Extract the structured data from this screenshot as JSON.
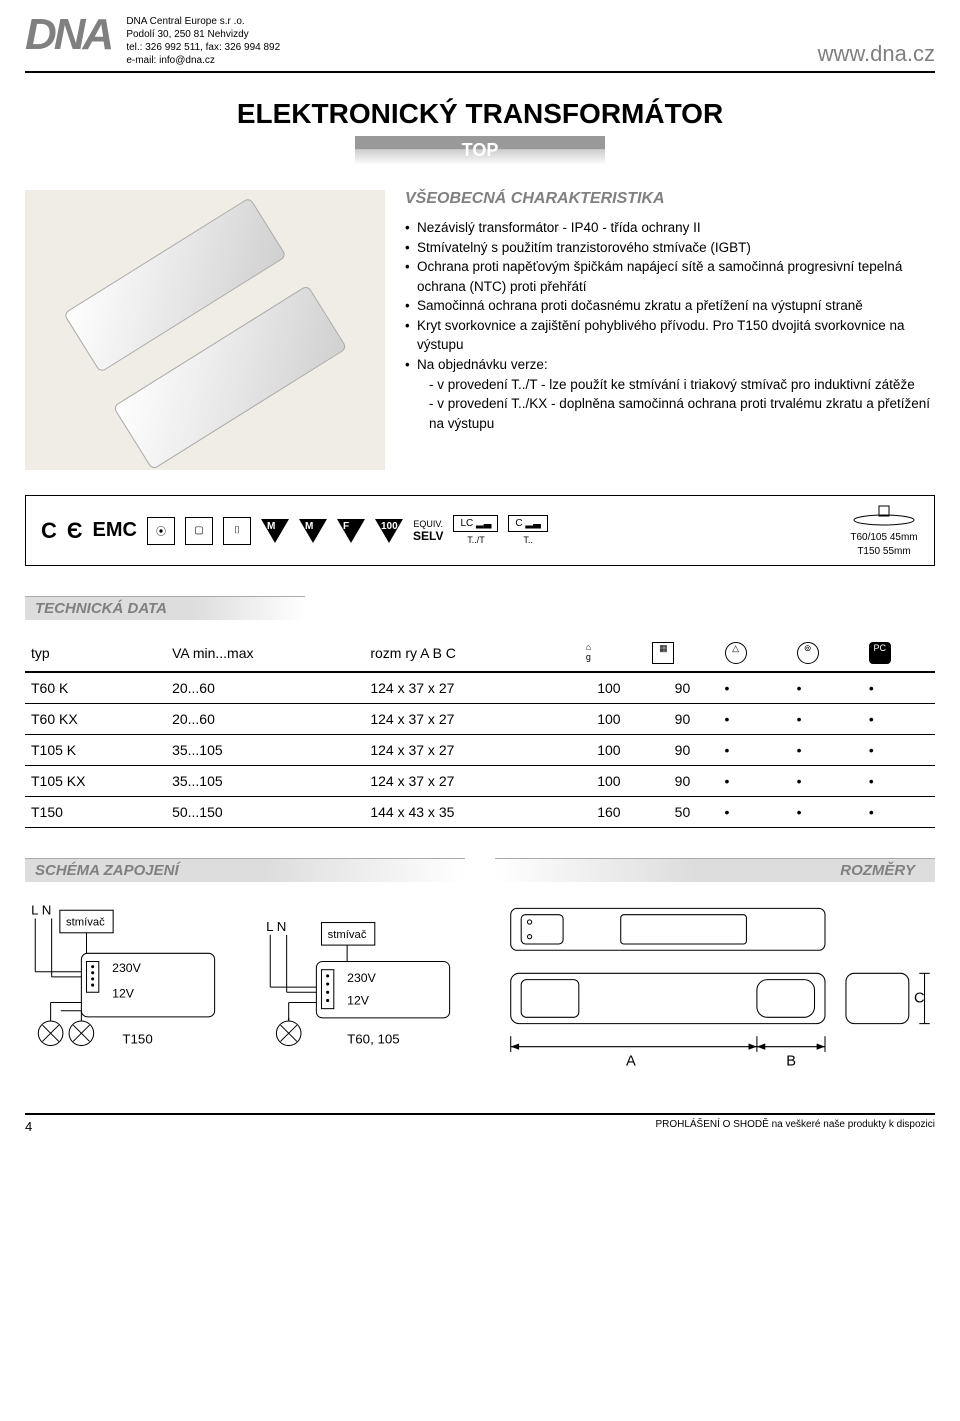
{
  "header": {
    "logo_text": "DNA",
    "company_lines": [
      "DNA Central Europe s.r .o.",
      "Podolí 30, 250 81 Nehvizdy",
      "tel.: 326 992 511, fax: 326 994 892",
      "e-mail: info@dna.cz"
    ],
    "url": "www.dna.cz"
  },
  "title": "ELEKTRONICKÝ TRANSFORMÁTOR",
  "subtitle": "TOP",
  "characteristics": {
    "heading": "VŠEOBECNÁ CHARAKTERISTIKA",
    "items": [
      "Nezávislý transformátor - IP40 - třída ochrany II",
      "Stmívatelný s použitím tranzistorového stmívače (IGBT)",
      "Ochrana proti napěťovým špičkám napájecí sítě a samočinná progresivní tepelná ochrana (NTC) proti přehřátí",
      "Samočinná ochrana proti dočasnému zkratu a přetížení na výstupní straně",
      "Kryt svorkovnice a zajištění pohyblivého přívodu. Pro T150 dvojitá svorkovnice na výstupu",
      "Na objednávku verze:"
    ],
    "sub_items": [
      "- v provedení T../T - lze použít ke stmívání i triakový stmívač pro induktivní zátěže",
      "- v provedení T../KX - doplněna samočinná ochrana proti trvalému zkratu a přetížení na výstupu"
    ]
  },
  "icon_bar": {
    "marks": [
      "M",
      "M",
      "F",
      "100"
    ],
    "equiv_label": "EQUIV.",
    "selv": "SELV",
    "lc_label": "LC",
    "c_label": "C",
    "t_t": "T../T",
    "t_dot": "T..",
    "mount_label_1": "T60/105  45mm",
    "mount_label_2": "T150  55mm"
  },
  "section_tech": "TECHNICKÁ DATA",
  "table": {
    "headers": [
      "typ",
      "VA min...max",
      "rozm ry  A   B   C"
    ],
    "col_g": "g",
    "rows": [
      {
        "typ": "T60 K",
        "va": "20...60",
        "dim": "124 x 37 x 27",
        "g": "100",
        "q": "90",
        "a": true,
        "b": true,
        "c": true
      },
      {
        "typ": "T60 KX",
        "va": "20...60",
        "dim": "124 x 37 x 27",
        "g": "100",
        "q": "90",
        "a": true,
        "b": true,
        "c": true
      },
      {
        "typ": "T105 K",
        "va": "35...105",
        "dim": "124 x 37 x 27",
        "g": "100",
        "q": "90",
        "a": true,
        "b": true,
        "c": true
      },
      {
        "typ": "T105 KX",
        "va": "35...105",
        "dim": "124 x 37 x 27",
        "g": "100",
        "q": "90",
        "a": true,
        "b": true,
        "c": true
      },
      {
        "typ": "T150",
        "va": "50...150",
        "dim": "144 x 43 x 35",
        "g": "160",
        "q": "50",
        "a": true,
        "b": true,
        "c": true
      }
    ]
  },
  "section_schema": "SCHÉMA ZAPOJENÍ",
  "section_dim": "ROZMĚRY",
  "schema": {
    "ln": "L N",
    "dimmer": "stmívač",
    "v230": "230V",
    "v12": "12V",
    "t150": "T150",
    "t60": "T60, 105",
    "dim_a": "A",
    "dim_b": "B",
    "dim_c": "C"
  },
  "footer": {
    "page": "4",
    "note": "PROHLÁŠENÍ O SHODĚ na veškeré naše produkty k dispozici"
  },
  "colors": {
    "gray_text": "#808080",
    "bar_gray": "#999999",
    "img_bg": "#f0ece6"
  }
}
